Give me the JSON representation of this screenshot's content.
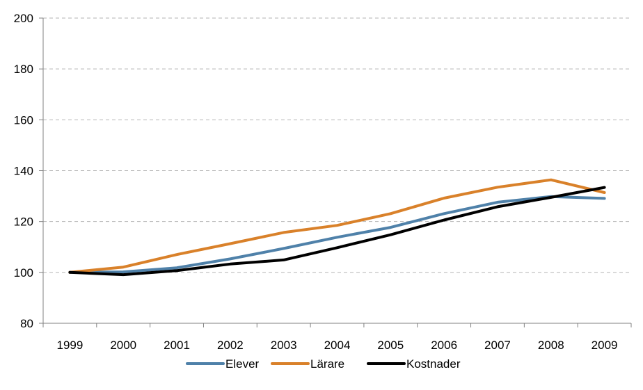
{
  "chart_data": {
    "type": "line",
    "categories": [
      "1999",
      "2000",
      "2001",
      "2002",
      "2003",
      "2004",
      "2005",
      "2006",
      "2007",
      "2008",
      "2009"
    ],
    "series": [
      {
        "name": "Elever",
        "color": "#4f81a9",
        "values": [
          100,
          100.2,
          101.8,
          105.3,
          109.4,
          113.8,
          117.7,
          123.1,
          127.6,
          129.8,
          129.1
        ]
      },
      {
        "name": "Lärare",
        "color": "#d9812a",
        "values": [
          100,
          102.1,
          107.0,
          111.3,
          115.7,
          118.5,
          123.1,
          129.2,
          133.5,
          136.4,
          131.4
        ]
      },
      {
        "name": "Kostnader",
        "color": "#000000",
        "values": [
          100,
          99.1,
          100.7,
          103.3,
          104.9,
          109.7,
          114.8,
          120.6,
          125.8,
          129.5,
          133.4
        ]
      }
    ],
    "ylim": [
      80,
      200
    ],
    "yticks": [
      "80",
      "100",
      "120",
      "140",
      "160",
      "180",
      "200"
    ],
    "grid": "horizontal-dashed",
    "legend_position": "bottom-center",
    "title": "",
    "xlabel": "",
    "ylabel": ""
  }
}
